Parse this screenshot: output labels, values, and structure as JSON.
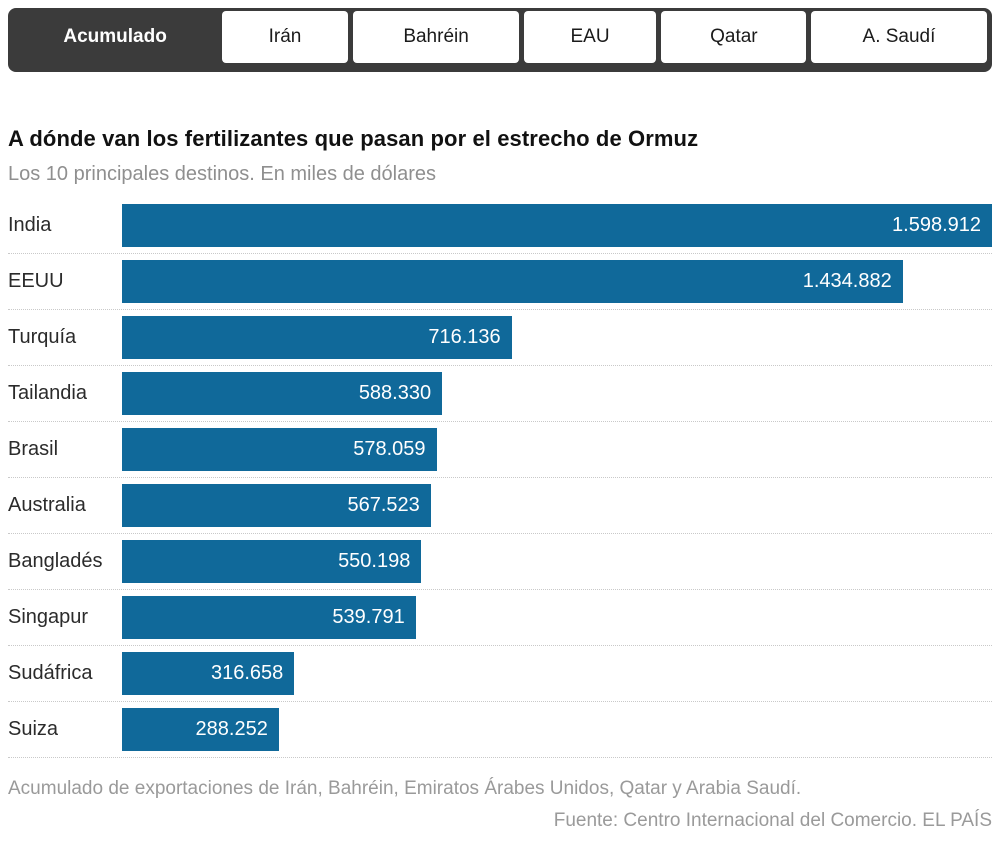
{
  "tabs": {
    "items": [
      {
        "label": "Acumulado",
        "active": true,
        "flex": 210
      },
      {
        "label": "Irán",
        "active": false,
        "flex": 131
      },
      {
        "label": "Bahréin",
        "active": false,
        "flex": 171
      },
      {
        "label": "EAU",
        "active": false,
        "flex": 137
      },
      {
        "label": "Qatar",
        "active": false,
        "flex": 150
      },
      {
        "label": "A. Saudí",
        "active": false,
        "flex": 181
      }
    ]
  },
  "header": {
    "title": "A dónde van los fertilizantes que pasan por el estrecho de Ormuz",
    "subtitle": "Los 10 principales destinos. En miles de dólares"
  },
  "chart_data": {
    "type": "bar",
    "orientation": "horizontal",
    "title": "A dónde van los fertilizantes que pasan por el estrecho de Ormuz",
    "subtitle": "Los 10 principales destinos. En miles de dólares",
    "unit": "miles de dólares",
    "categories": [
      "India",
      "EEUU",
      "Turquía",
      "Tailandia",
      "Brasil",
      "Australia",
      "Bangladés",
      "Singapur",
      "Sudáfrica",
      "Suiza"
    ],
    "values": [
      1598912,
      1434882,
      716136,
      588330,
      578059,
      567523,
      550198,
      539791,
      316658,
      288252
    ],
    "value_labels": [
      "1.598.912",
      "1.434.882",
      "716.136",
      "588.330",
      "578.059",
      "567.523",
      "550.198",
      "539.791",
      "316.658",
      "288.252"
    ],
    "xlim": [
      0,
      1598912
    ],
    "grid": false,
    "legend": false,
    "value_label_position": "inside-end"
  },
  "footer": {
    "note": "Acumulado de exportaciones de Irán, Bahréin, Emiratos Árabes Unidos, Qatar y Arabia Saudí.",
    "source": "Fuente: Centro Internacional del Comercio. EL PAÍS"
  },
  "colors": {
    "bar": "#10699A",
    "tabbar_background": "#3b3b3b",
    "tab_inactive_background": "#ffffff",
    "active_tab_text": "#ffffff",
    "inactive_tab_text": "#1b1b1b",
    "title_text": "#111111",
    "subtitle_text": "#8f8f8f",
    "bar_value_text": "#ffffff",
    "row_separator": "#c9c9c9",
    "footer_text": "#9a9a9a"
  }
}
